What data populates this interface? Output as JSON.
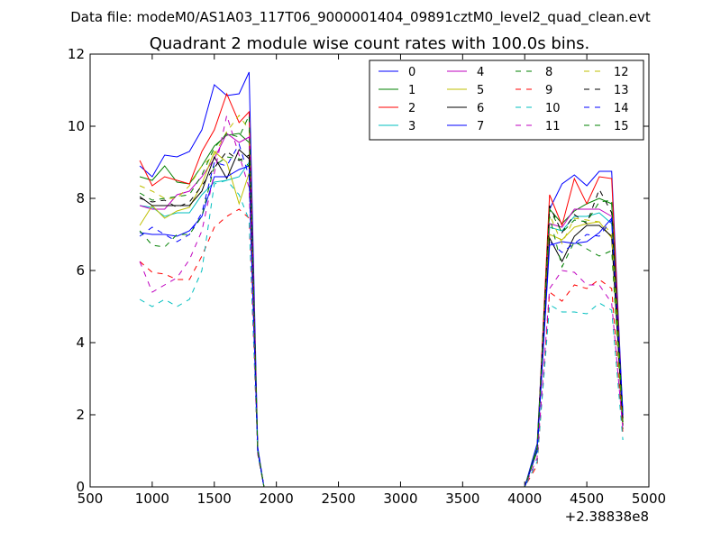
{
  "chart_data": {
    "type": "line",
    "suptitle": "Data file: modeM0/AS1A03_117T06_9000001404_09891cztM0_level2_quad_clean.evt",
    "title": "Quadrant 2 module wise count rates with 100.0s bins.",
    "xlabel": "",
    "ylabel": "",
    "x_offset_label": "+2.38838e8",
    "xlim": [
      500,
      5000
    ],
    "ylim": [
      0,
      12
    ],
    "xticks": [
      500,
      1000,
      1500,
      2000,
      2500,
      3000,
      3500,
      4000,
      4500,
      5000
    ],
    "yticks": [
      0,
      2,
      4,
      6,
      8,
      10,
      12
    ],
    "x": [
      900,
      1000,
      1100,
      1200,
      1300,
      1400,
      1500,
      1600,
      1700,
      1780,
      1850,
      1900,
      2000,
      3000,
      4000,
      4100,
      4200,
      4300,
      4400,
      4500,
      4600,
      4700,
      4790
    ],
    "legend_position": "top-right",
    "series": [
      {
        "name": "0",
        "color": "#0000ff",
        "dash": "solid",
        "values": [
          8.9,
          8.6,
          9.2,
          9.15,
          9.3,
          9.9,
          11.15,
          10.85,
          10.9,
          11.5,
          1.1,
          0,
          0,
          0,
          0,
          1.2,
          7.7,
          8.4,
          8.65,
          8.35,
          8.75,
          8.75,
          2.0
        ]
      },
      {
        "name": "1",
        "color": "#008000",
        "dash": "solid",
        "values": [
          8.6,
          8.5,
          8.9,
          8.45,
          8.4,
          8.9,
          9.45,
          9.75,
          9.8,
          9.55,
          1.0,
          0,
          0,
          0,
          0,
          1.1,
          7.7,
          7.3,
          7.65,
          7.85,
          8.0,
          7.85,
          1.9
        ]
      },
      {
        "name": "2",
        "color": "#ff0000",
        "dash": "solid",
        "values": [
          9.05,
          8.35,
          8.6,
          8.5,
          8.4,
          9.3,
          9.9,
          10.9,
          10.1,
          10.4,
          1.0,
          0,
          0,
          0,
          0,
          1.0,
          8.1,
          7.25,
          8.55,
          7.85,
          8.6,
          8.55,
          1.8
        ]
      },
      {
        "name": "3",
        "color": "#00bfbf",
        "dash": "solid",
        "values": [
          7.8,
          7.75,
          7.5,
          7.6,
          7.6,
          8.1,
          8.45,
          8.5,
          8.6,
          9.0,
          1.0,
          0,
          0,
          0,
          0,
          1.0,
          7.2,
          7.1,
          7.5,
          7.5,
          7.6,
          7.3,
          1.7
        ]
      },
      {
        "name": "4",
        "color": "#bf00bf",
        "dash": "solid",
        "values": [
          7.8,
          7.7,
          7.7,
          8.1,
          8.2,
          8.6,
          9.1,
          9.8,
          9.55,
          9.7,
          1.0,
          0,
          0,
          0,
          0,
          1.0,
          7.3,
          7.2,
          7.7,
          7.7,
          7.7,
          7.5,
          1.8
        ]
      },
      {
        "name": "5",
        "color": "#bfbf00",
        "dash": "solid",
        "values": [
          7.25,
          7.8,
          7.45,
          7.65,
          7.75,
          8.4,
          9.3,
          9.0,
          7.85,
          8.7,
          1.0,
          0,
          0,
          0,
          0,
          1.0,
          7.0,
          6.85,
          7.2,
          7.3,
          7.35,
          6.9,
          1.7
        ]
      },
      {
        "name": "6",
        "color": "#000000",
        "dash": "solid",
        "values": [
          8.05,
          7.8,
          7.8,
          7.8,
          7.8,
          8.2,
          9.15,
          8.55,
          9.35,
          9.1,
          1.0,
          0,
          0,
          0,
          0,
          1.0,
          6.9,
          6.25,
          6.95,
          7.25,
          7.25,
          6.95,
          1.7
        ]
      },
      {
        "name": "7",
        "color": "#0000ff",
        "dash": "solid",
        "values": [
          7.05,
          7.0,
          7.0,
          6.95,
          7.1,
          7.5,
          8.6,
          8.6,
          8.8,
          8.9,
          1.0,
          0,
          0,
          0,
          0,
          1.0,
          6.7,
          6.8,
          6.75,
          6.8,
          7.05,
          7.45,
          2.1
        ]
      },
      {
        "name": "8",
        "color": "#008000",
        "dash": "dash",
        "values": [
          7.1,
          6.7,
          6.65,
          7.0,
          7.0,
          7.5,
          8.9,
          9.15,
          9.1,
          8.9,
          1.0,
          0,
          0,
          0,
          0,
          1.0,
          7.5,
          6.1,
          6.8,
          6.6,
          6.4,
          6.55,
          1.6
        ]
      },
      {
        "name": "9",
        "color": "#ff0000",
        "dash": "dash",
        "values": [
          6.25,
          5.95,
          5.9,
          5.75,
          5.75,
          6.4,
          7.2,
          7.5,
          7.7,
          7.45,
          0.9,
          0,
          0,
          0,
          0,
          0.6,
          5.4,
          5.15,
          5.6,
          5.5,
          5.75,
          5.5,
          1.5
        ]
      },
      {
        "name": "10",
        "color": "#00bfbf",
        "dash": "dash",
        "values": [
          5.2,
          5.0,
          5.2,
          5.0,
          5.2,
          6.0,
          8.4,
          8.5,
          8.1,
          7.4,
          0.9,
          0,
          0,
          0,
          0,
          0.7,
          5.05,
          4.85,
          4.85,
          4.8,
          5.1,
          4.9,
          1.3
        ]
      },
      {
        "name": "11",
        "color": "#bf00bf",
        "dash": "dash",
        "values": [
          6.25,
          5.4,
          5.6,
          5.8,
          6.3,
          7.1,
          8.7,
          10.3,
          9.2,
          8.3,
          0.9,
          0,
          0,
          0,
          0,
          0.8,
          5.5,
          6.0,
          5.95,
          5.6,
          5.6,
          5.1,
          1.6
        ]
      },
      {
        "name": "12",
        "color": "#bfbf00",
        "dash": "dash",
        "values": [
          8.35,
          8.2,
          8.0,
          8.0,
          8.35,
          8.9,
          9.2,
          9.85,
          10.3,
          9.9,
          1.0,
          0,
          0,
          0,
          0,
          1.0,
          7.55,
          6.75,
          7.45,
          7.4,
          7.35,
          7.05,
          1.75
        ]
      },
      {
        "name": "13",
        "color": "#000000",
        "dash": "dash",
        "values": [
          8.0,
          7.9,
          7.95,
          7.75,
          7.9,
          8.35,
          8.85,
          9.3,
          9.05,
          9.2,
          1.0,
          0,
          0,
          0,
          0,
          1.0,
          7.8,
          7.05,
          7.55,
          7.3,
          8.25,
          7.6,
          1.9
        ]
      },
      {
        "name": "14",
        "color": "#0000ff",
        "dash": "dash",
        "values": [
          6.95,
          7.2,
          7.0,
          6.8,
          7.0,
          7.6,
          9.0,
          8.9,
          9.5,
          8.6,
          1.0,
          0,
          0,
          0,
          0,
          1.0,
          6.8,
          6.5,
          6.75,
          7.0,
          6.95,
          7.4,
          2.0
        ]
      },
      {
        "name": "15",
        "color": "#008000",
        "dash": "dash",
        "values": [
          8.15,
          7.95,
          8.0,
          8.05,
          8.1,
          8.65,
          9.4,
          9.8,
          9.7,
          10.3,
          1.0,
          0,
          0,
          0,
          0,
          1.0,
          7.7,
          7.05,
          7.4,
          7.35,
          7.9,
          7.95,
          1.8
        ]
      }
    ]
  }
}
